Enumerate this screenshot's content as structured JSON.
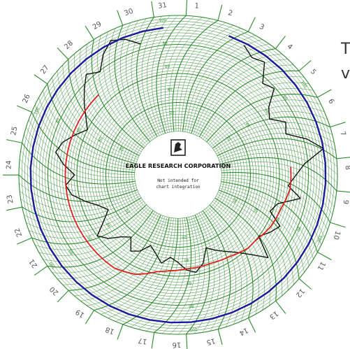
{
  "chart_data": {
    "type": "circular_chart_recorder",
    "day_labels": [
      "1",
      "2",
      "3",
      "4",
      "5",
      "6",
      "7",
      "8",
      "9",
      "10",
      "11",
      "12",
      "13",
      "14",
      "15",
      "16",
      "17",
      "18",
      "19",
      "20",
      "21",
      "22",
      "23",
      "24",
      "25",
      "26",
      "27",
      "28",
      "29",
      "30",
      "31"
    ],
    "radial_scale_labels": [
      "100",
      "80",
      "60",
      "40",
      "20",
      "0"
    ],
    "series": [
      {
        "color": "#111111",
        "values": [
          88,
          82,
          85,
          70,
          74,
          60,
          55,
          66,
          62,
          78,
          90,
          72,
          64,
          58,
          70,
          52,
          48,
          61,
          56,
          50,
          68,
          55,
          46,
          40,
          35,
          30,
          42,
          48,
          45,
          38,
          34,
          40,
          33,
          28,
          36,
          40,
          30,
          35,
          44,
          50,
          38,
          30,
          36,
          46,
          56,
          60,
          52,
          62,
          70,
          66,
          58,
          50,
          56,
          64,
          72,
          80,
          74,
          85,
          92,
          88,
          80
        ]
      },
      {
        "color": "#e02020",
        "values": [
          60,
          60,
          60,
          58,
          56,
          55,
          54,
          52,
          50,
          50,
          48,
          46,
          45,
          44,
          44,
          44,
          44,
          45,
          46,
          48,
          52,
          56,
          58,
          60,
          60,
          60,
          60,
          60,
          60,
          60,
          60,
          60,
          60,
          60,
          60,
          60,
          60,
          60,
          60,
          60,
          60,
          60
        ]
      },
      {
        "color": "#1a1a9a",
        "values": [
          90,
          90,
          90,
          90,
          90,
          90,
          90,
          90,
          90,
          90,
          90,
          90,
          90,
          90,
          90,
          90,
          90,
          90,
          90,
          90,
          90,
          90,
          90,
          90,
          90,
          90,
          90,
          90,
          90,
          90,
          90,
          90,
          90,
          90,
          90,
          90,
          90,
          90,
          90,
          90,
          90,
          90
        ]
      }
    ],
    "colors": {
      "grid": "#2e8b2e",
      "background": "#ffffff"
    }
  },
  "center": {
    "brand": "EAGLE RESEARCH CORPORATION",
    "note_line1": "Not intended for",
    "note_line2": "chart integration",
    "logo_icon": "eagle-logo-icon"
  },
  "side_text": {
    "line1": "T",
    "line2": "v"
  }
}
